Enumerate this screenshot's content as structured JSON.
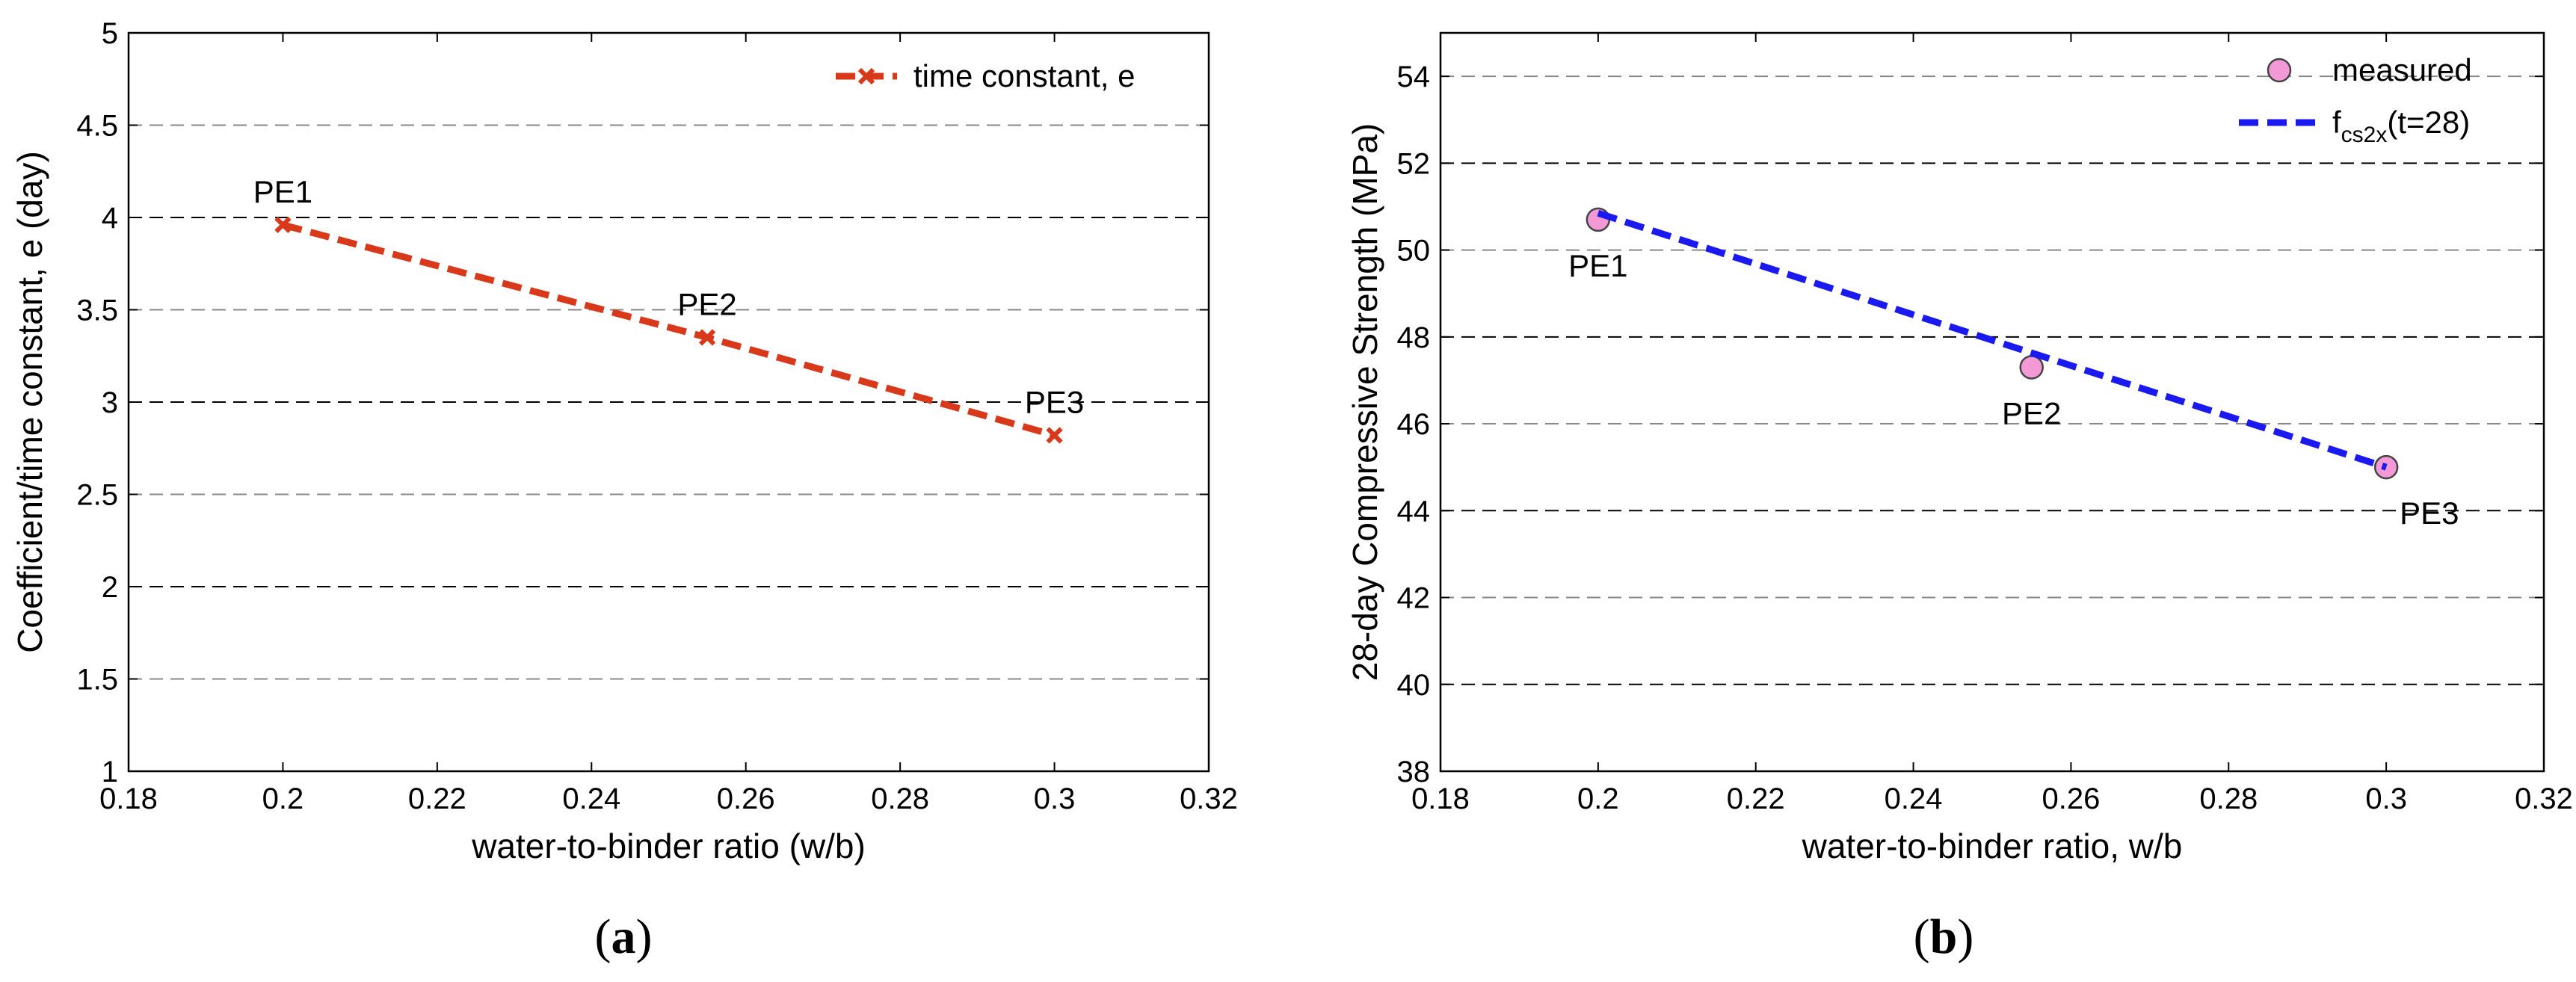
{
  "chart_data": [
    {
      "type": "line",
      "title": "",
      "caption": "(a)",
      "xlabel": "water-to-binder ratio (w/b)",
      "ylabel": "Coefficient/time constant, e (day)",
      "xlim": [
        0.18,
        0.32
      ],
      "ylim": [
        1,
        5
      ],
      "xticks": [
        0.18,
        0.2,
        0.22,
        0.24,
        0.26,
        0.28,
        0.3,
        0.32
      ],
      "xtick_labels": [
        "0.18",
        "0.2",
        "0.22",
        "0.24",
        "0.26",
        "0.28",
        "0.3",
        "0.32"
      ],
      "yticks": [
        1,
        1.5,
        2,
        2.5,
        3,
        3.5,
        4,
        4.5,
        5
      ],
      "ytick_labels": [
        "1",
        "1.5",
        "2",
        "2.5",
        "3",
        "3.5",
        "4",
        "4.5",
        "5"
      ],
      "grid": "horizontal dashed",
      "legend_position": "top-right",
      "series": [
        {
          "name": "time constant, e",
          "style": "dashed line with x markers",
          "color": "#D8391A",
          "x": [
            0.2,
            0.255,
            0.3
          ],
          "y": [
            3.96,
            3.35,
            2.82
          ]
        }
      ],
      "annotations": [
        {
          "text": "PE1",
          "x": 0.2,
          "y": 3.96,
          "pos": "above"
        },
        {
          "text": "PE2",
          "x": 0.255,
          "y": 3.35,
          "pos": "above"
        },
        {
          "text": "PE3",
          "x": 0.3,
          "y": 2.82,
          "pos": "above"
        }
      ]
    },
    {
      "type": "line",
      "title": "",
      "caption": "(b)",
      "xlabel": "water-to-binder ratio, w/b",
      "ylabel": "28-day Compressive Strength (MPa)",
      "xlim": [
        0.18,
        0.32
      ],
      "ylim": [
        38,
        55
      ],
      "xticks": [
        0.18,
        0.2,
        0.22,
        0.24,
        0.26,
        0.28,
        0.3,
        0.32
      ],
      "xtick_labels": [
        "0.18",
        "0.2",
        "0.22",
        "0.24",
        "0.26",
        "0.28",
        "0.3",
        "0.32"
      ],
      "yticks": [
        38,
        40,
        42,
        44,
        46,
        48,
        50,
        52,
        54
      ],
      "ytick_labels": [
        "38",
        "40",
        "42",
        "44",
        "46",
        "48",
        "50",
        "52",
        "54"
      ],
      "grid": "horizontal dashed",
      "legend_position": "top-right",
      "series": [
        {
          "name": "measured",
          "style": "circle markers",
          "color": "#F39AD6",
          "x": [
            0.2,
            0.255,
            0.3
          ],
          "y": [
            50.7,
            47.3,
            45.0
          ]
        },
        {
          "name": "f",
          "name_sub": "cs2x",
          "name_suffix": "(t=28)",
          "style": "dashed line",
          "color": "#1A1AF0",
          "x": [
            0.2,
            0.3
          ],
          "y": [
            50.85,
            45.0
          ]
        }
      ],
      "annotations": [
        {
          "text": "PE1",
          "x": 0.2,
          "y": 50.7,
          "pos": "below"
        },
        {
          "text": "PE2",
          "x": 0.255,
          "y": 47.3,
          "pos": "below"
        },
        {
          "text": "PE3",
          "x": 0.3,
          "y": 45.0,
          "pos": "below-right"
        }
      ]
    }
  ]
}
